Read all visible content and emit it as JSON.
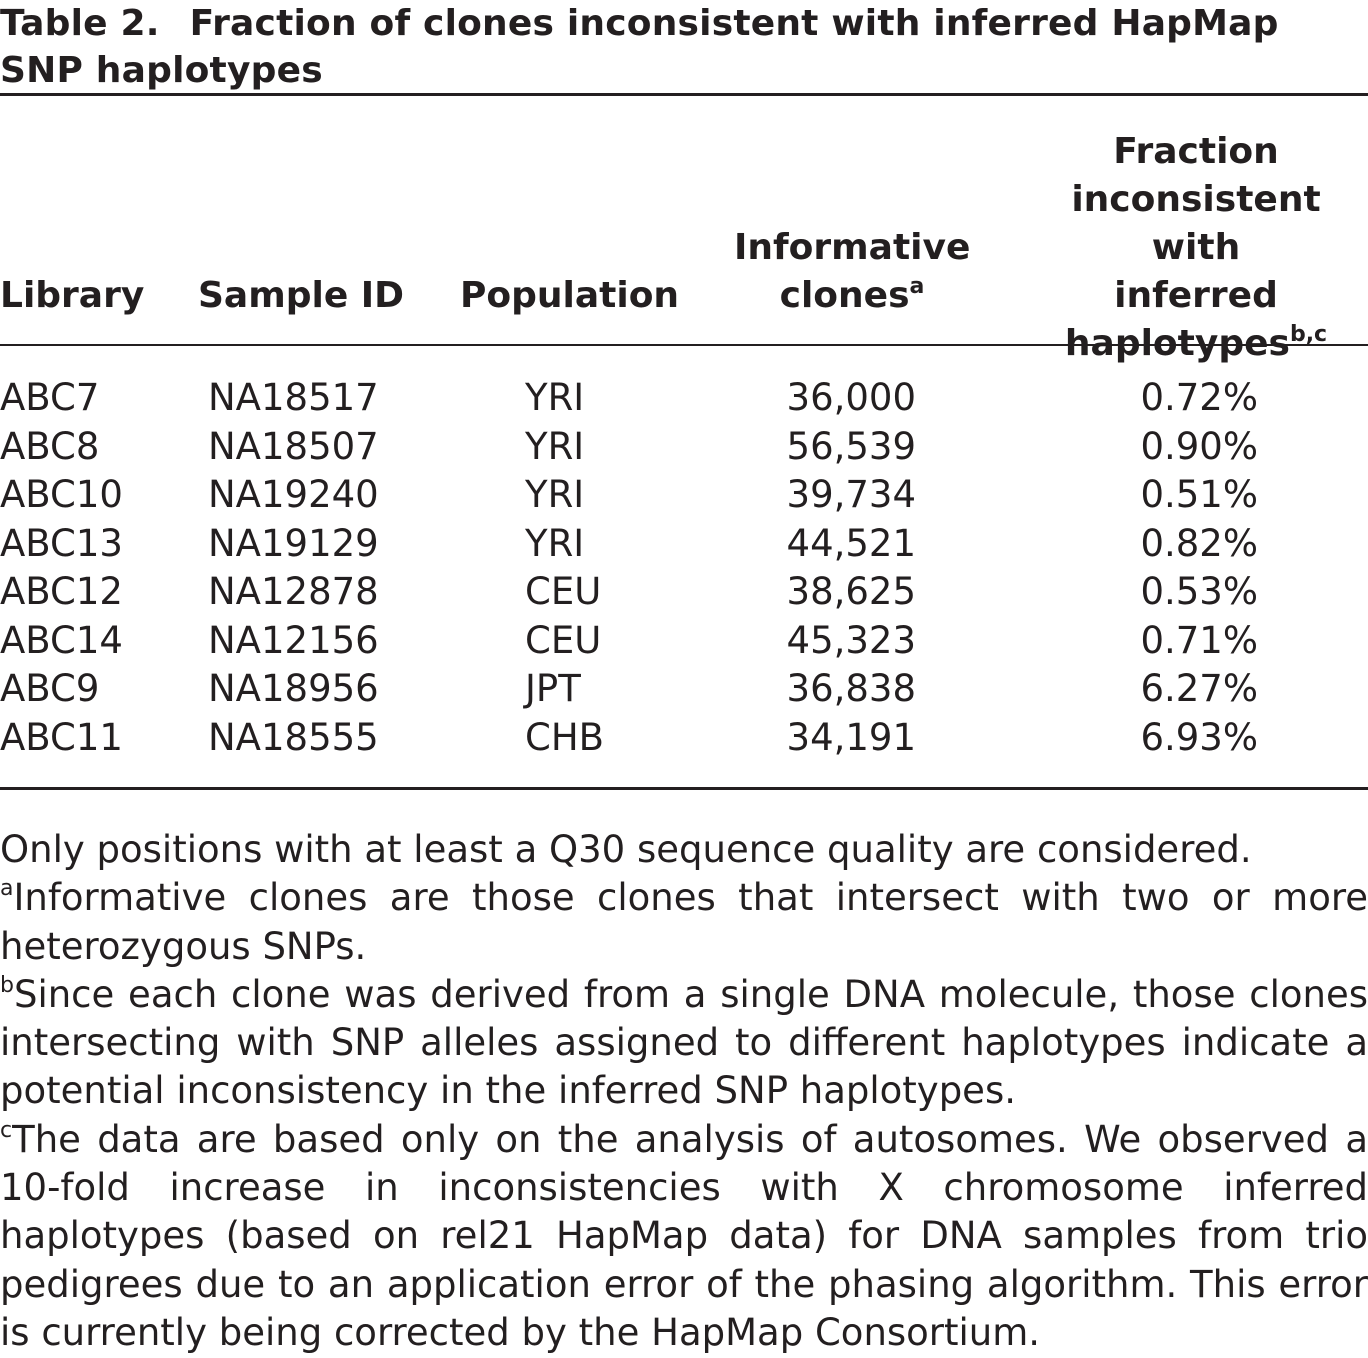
{
  "table": {
    "label": "Table 2.",
    "title_line1": "Fraction of clones inconsistent with inferred HapMap",
    "title_line2": "SNP haplotypes",
    "headers": {
      "library": "Library",
      "sample_id": "Sample ID",
      "population": "Population",
      "informative_line1": "Informative",
      "informative_line2": "clones",
      "informative_sup": "a",
      "fraction_line1": "Fraction",
      "fraction_line2": "inconsistent with",
      "fraction_line3": "inferred",
      "fraction_line4": "haplotypes",
      "fraction_sup": "b,c"
    },
    "rows": [
      {
        "library": "ABC7",
        "sample_id": "NA18517",
        "population": "YRI",
        "informative": "36,000",
        "fraction": "0.72%"
      },
      {
        "library": "ABC8",
        "sample_id": "NA18507",
        "population": "YRI",
        "informative": "56,539",
        "fraction": "0.90%"
      },
      {
        "library": "ABC10",
        "sample_id": "NA19240",
        "population": "YRI",
        "informative": "39,734",
        "fraction": "0.51%"
      },
      {
        "library": "ABC13",
        "sample_id": "NA19129",
        "population": "YRI",
        "informative": "44,521",
        "fraction": "0.82%"
      },
      {
        "library": "ABC12",
        "sample_id": "NA12878",
        "population": "CEU",
        "informative": "38,625",
        "fraction": "0.53%"
      },
      {
        "library": "ABC14",
        "sample_id": "NA12156",
        "population": "CEU",
        "informative": "45,323",
        "fraction": "0.71%"
      },
      {
        "library": "ABC9",
        "sample_id": "NA18956",
        "population": "JPT",
        "informative": "36,838",
        "fraction": "6.27%"
      },
      {
        "library": "ABC11",
        "sample_id": "NA18555",
        "population": "CHB",
        "informative": "34,191",
        "fraction": "6.93%"
      }
    ],
    "footnotes": {
      "general": "Only positions with at least a Q30 sequence quality are considered.",
      "a_mark": "a",
      "a_text": "Informative clones are those clones that intersect with two or more heterozygous SNPs.",
      "b_mark": "b",
      "b_text": "Since each clone was derived from a single DNA molecule, those clones intersecting with SNP alleles assigned to different haplotypes indicate a potential inconsistency in the inferred SNP haplotypes.",
      "c_mark": "c",
      "c_text": "The data are based only on the analysis of autosomes. We observed a 10-fold increase in inconsistencies with X chromosome inferred haplotypes (based on rel21 HapMap data) for DNA samples from trio pedigrees due to an application error of the phasing algorithm. This error is currently being corrected by the HapMap Consortium."
    }
  }
}
